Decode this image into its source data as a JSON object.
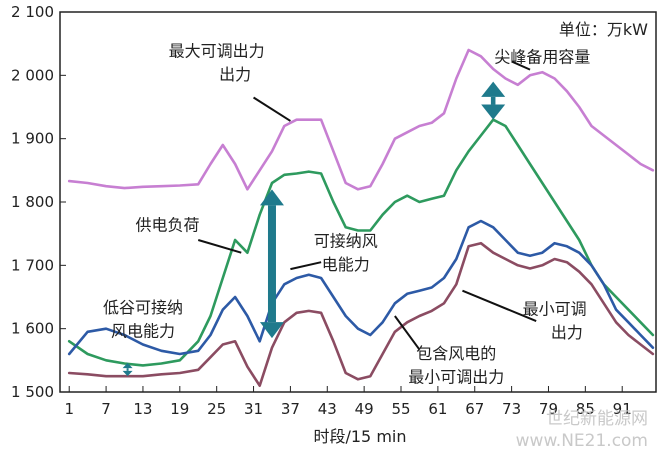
{
  "chart_data": {
    "type": "line",
    "unit_label": "单位：万kW",
    "xlabel": "时段/15 min",
    "ylabel": "",
    "x_ticks": [
      "1",
      "7",
      "13",
      "19",
      "25",
      "31",
      "37",
      "43",
      "49",
      "55",
      "61",
      "67",
      "73",
      "79",
      "85",
      "91"
    ],
    "y_ticks": [
      "1 500",
      "1 600",
      "1 700",
      "1 800",
      "1 900",
      "2 000",
      "2 100"
    ],
    "xlim": [
      -0.5,
      96.5
    ],
    "ylim": [
      1500,
      2100
    ],
    "x": [
      1,
      4,
      7,
      10,
      13,
      16,
      19,
      22,
      24,
      26,
      28,
      30,
      32,
      34,
      36,
      38,
      40,
      42,
      44,
      46,
      48,
      50,
      52,
      54,
      56,
      58,
      60,
      62,
      64,
      66,
      68,
      70,
      72,
      74,
      76,
      78,
      80,
      82,
      84,
      86,
      88,
      90,
      92,
      94,
      96
    ],
    "series": [
      {
        "name": "最大可调出力",
        "color": "#c77fd2",
        "values": [
          1833,
          1830,
          1825,
          1822,
          1824,
          1825,
          1826,
          1828,
          1860,
          1890,
          1860,
          1820,
          1850,
          1880,
          1920,
          1930,
          1930,
          1930,
          1880,
          1830,
          1820,
          1825,
          1860,
          1900,
          1910,
          1920,
          1925,
          1940,
          1995,
          2040,
          2030,
          2010,
          1995,
          1985,
          2000,
          2005,
          1995,
          1975,
          1950,
          1920,
          1905,
          1890,
          1875,
          1860,
          1850
        ]
      },
      {
        "name": "供电负荷",
        "color": "#2e9a5e",
        "values": [
          1580,
          1560,
          1550,
          1545,
          1542,
          1545,
          1550,
          1580,
          1620,
          1680,
          1740,
          1720,
          1780,
          1830,
          1843,
          1845,
          1848,
          1845,
          1800,
          1760,
          1755,
          1755,
          1780,
          1800,
          1810,
          1800,
          1805,
          1810,
          1850,
          1880,
          1905,
          1930,
          1920,
          1890,
          1860,
          1830,
          1800,
          1770,
          1740,
          1700,
          1670,
          1650,
          1630,
          1610,
          1590
        ]
      },
      {
        "name": "可接纳风电能力",
        "color": "#2d5aa6",
        "values": [
          1560,
          1595,
          1600,
          1590,
          1575,
          1565,
          1560,
          1565,
          1590,
          1630,
          1650,
          1620,
          1580,
          1640,
          1670,
          1680,
          1685,
          1680,
          1650,
          1620,
          1600,
          1590,
          1610,
          1640,
          1655,
          1660,
          1665,
          1680,
          1710,
          1760,
          1770,
          1760,
          1740,
          1720,
          1715,
          1720,
          1735,
          1730,
          1720,
          1700,
          1670,
          1630,
          1610,
          1590,
          1570
        ]
      },
      {
        "name": "包含风电的最小可调出力",
        "color": "#8b4c62",
        "values": [
          1530,
          1528,
          1525,
          1525,
          1525,
          1528,
          1530,
          1535,
          1555,
          1575,
          1580,
          1540,
          1510,
          1570,
          1610,
          1625,
          1628,
          1625,
          1580,
          1530,
          1520,
          1525,
          1560,
          1595,
          1610,
          1620,
          1628,
          1640,
          1670,
          1730,
          1735,
          1720,
          1710,
          1700,
          1695,
          1700,
          1710,
          1705,
          1690,
          1670,
          1640,
          1610,
          1590,
          1575,
          1560
        ]
      }
    ],
    "annotations": [
      {
        "text": "最大可调出力",
        "x": 25,
        "y": 2030
      },
      {
        "text": "出力",
        "x": 28,
        "y": 1993
      },
      {
        "text": "尖峰备用容量",
        "x": 78,
        "y": 2020
      },
      {
        "text": "供电负荷",
        "x": 17,
        "y": 1755
      },
      {
        "text": "可接纳风",
        "x": 46,
        "y": 1730
      },
      {
        "text": "电能力",
        "x": 46,
        "y": 1693
      },
      {
        "text": "低谷可接纳",
        "x": 13,
        "y": 1625
      },
      {
        "text": "风电能力",
        "x": 13,
        "y": 1588
      },
      {
        "text": "最小可调",
        "x": 80,
        "y": 1622
      },
      {
        "text": "出力",
        "x": 82,
        "y": 1585
      },
      {
        "text": "包含风电的",
        "x": 64,
        "y": 1552
      },
      {
        "text": "最小可调出力",
        "x": 64,
        "y": 1515
      }
    ],
    "leader_lines": [
      {
        "from": [
          31,
          1965
        ],
        "to": [
          37,
          1928
        ]
      },
      {
        "from": [
          22,
          1740
        ],
        "to": [
          29,
          1720
        ]
      },
      {
        "from": [
          37,
          1694
        ],
        "to": [
          42,
          1705
        ]
      },
      {
        "from": [
          77,
          1612
        ],
        "to": [
          65,
          1660
        ]
      },
      {
        "from": [
          58,
          1567
        ],
        "to": [
          54,
          1620
        ]
      },
      {
        "from": [
          76,
          2009
        ],
        "to": [
          73,
          2022
        ]
      }
    ],
    "double_arrows": [
      {
        "x": 34,
        "y1": 1820,
        "y2": 1585,
        "label": "可接纳风电能力"
      },
      {
        "x": 70,
        "y1": 1990,
        "y2": 1930,
        "label": "尖峰备用容量"
      },
      {
        "x": 10.5,
        "y1": 1546,
        "y2": 1525,
        "label": "低谷可接纳风电能力"
      }
    ],
    "grid": false,
    "legend": "none"
  },
  "watermark": {
    "line1": "世纪新能源网",
    "line2": "www.NE21.com"
  }
}
